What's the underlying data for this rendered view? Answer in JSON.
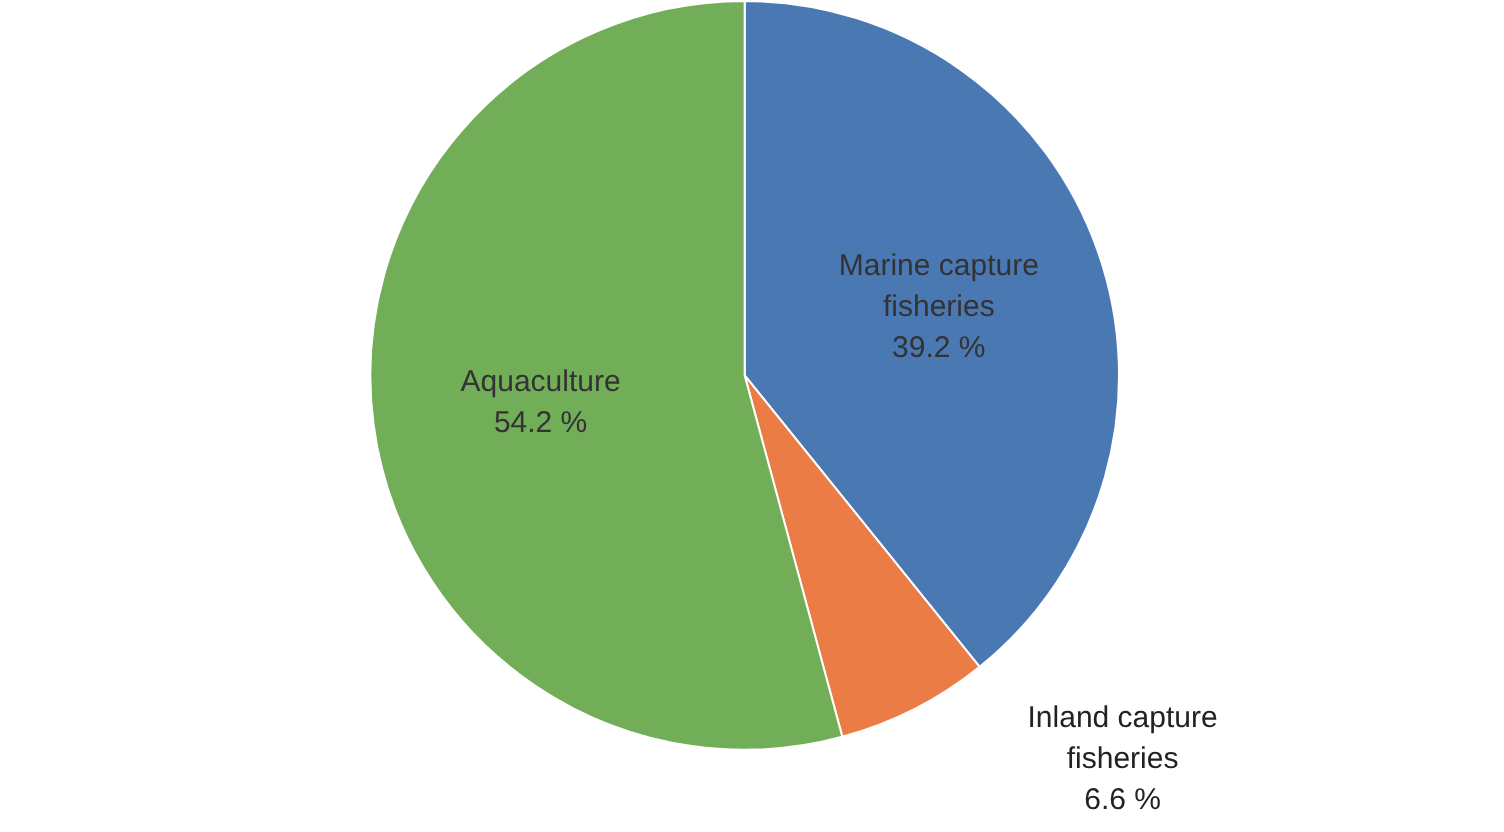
{
  "chart_data": {
    "type": "pie",
    "categories": [
      "Marine capture fisheries",
      "Inland capture fisheries",
      "Aquaculture"
    ],
    "values": [
      39.2,
      6.6,
      54.2
    ],
    "value_labels": [
      "39.2 %",
      "6.6 %",
      "54.2 %"
    ],
    "colors": [
      "#4a78b3",
      "#ec7c46",
      "#72ad58"
    ]
  }
}
